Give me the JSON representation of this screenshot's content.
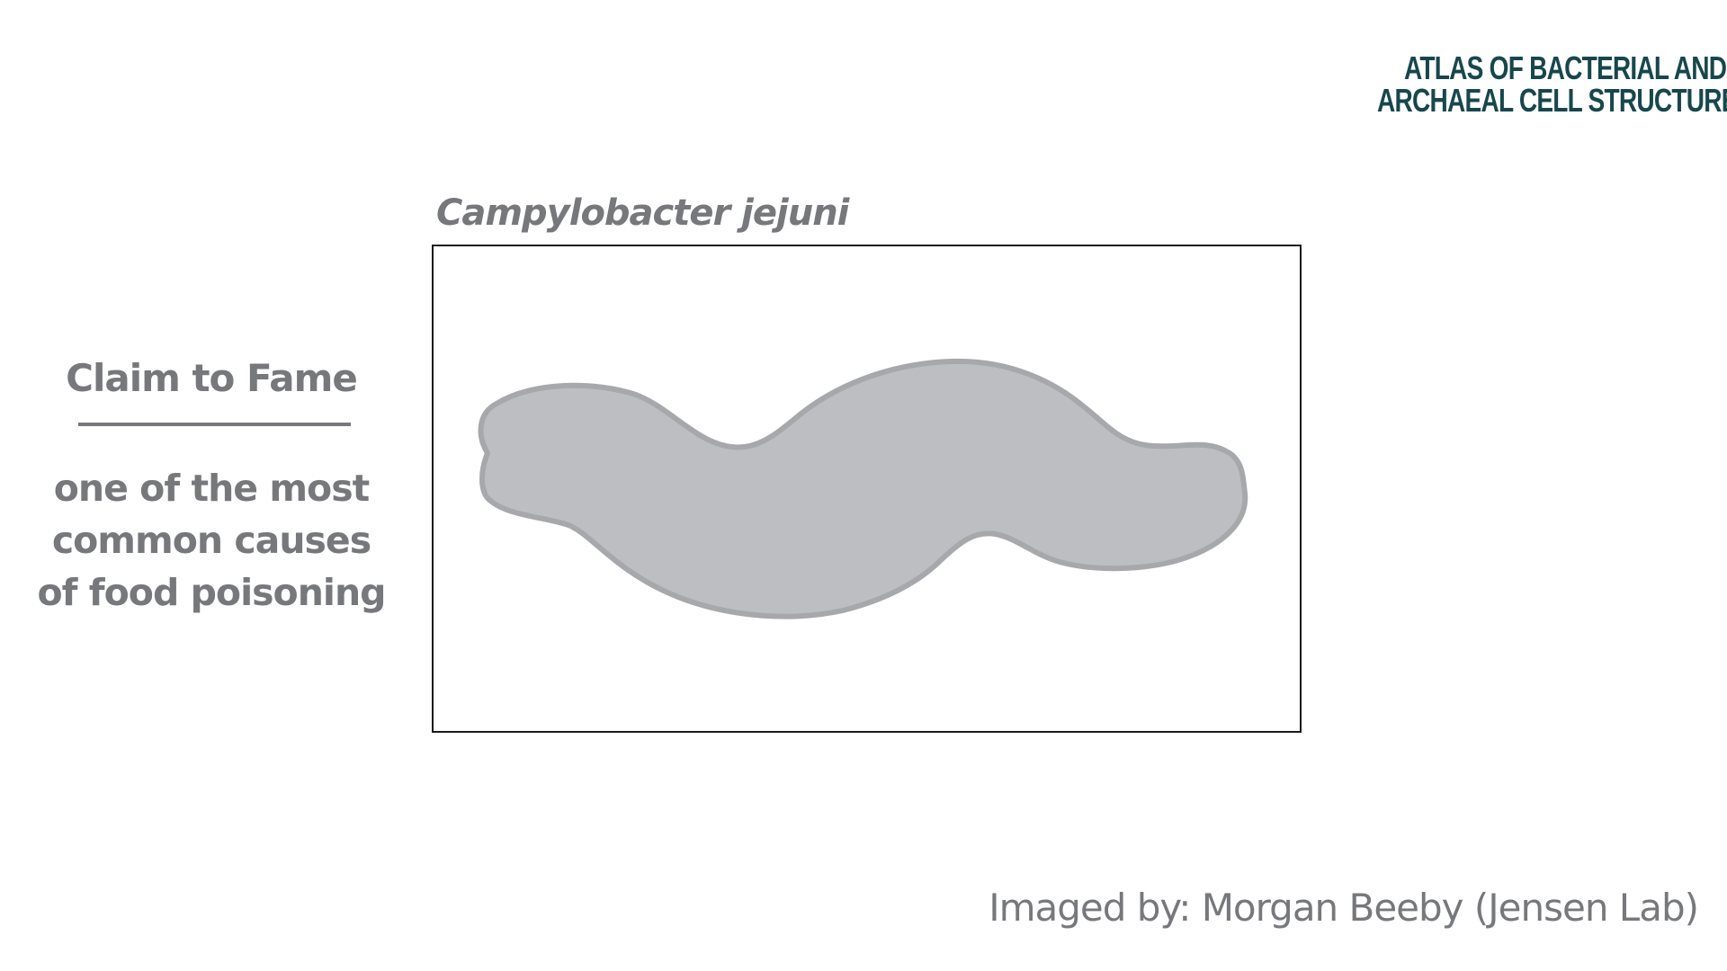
{
  "logo": {
    "line1": "Atlas of Bacterial and",
    "line2": "Archaeal Cell Structure",
    "color": "#17474d"
  },
  "species": {
    "name": "Campylobacter jejuni"
  },
  "claim": {
    "heading": "Claim to Fame",
    "body_lines": [
      "one of the most",
      "common causes",
      "of food poisoning"
    ]
  },
  "credit": {
    "text": "Imaged by: Morgan Beeby (Jensen Lab)"
  },
  "colors": {
    "text_gray": "#77787b",
    "cell_fill": "#bdbec1",
    "cell_outline": "#a7a8ab",
    "frame_border": "#1a1a1a"
  }
}
